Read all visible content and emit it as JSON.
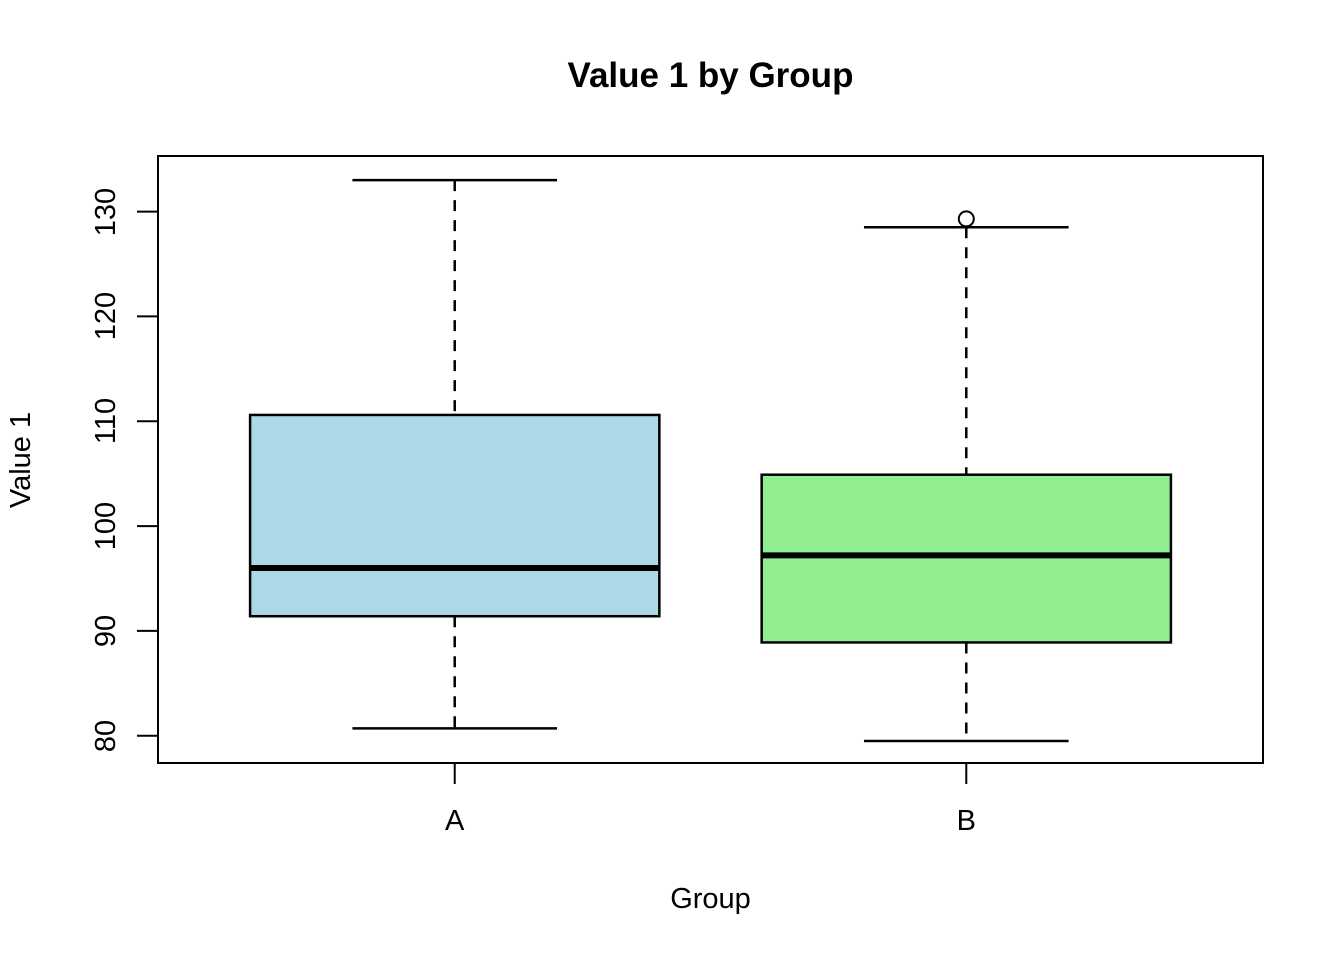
{
  "chart_data": {
    "type": "boxplot",
    "title": "Value 1 by Group",
    "xlabel": "Group",
    "ylabel": "Value 1",
    "ylim": [
      77.4,
      135.3
    ],
    "yticks": [
      80,
      90,
      100,
      110,
      120,
      130
    ],
    "grid": false,
    "legend": null,
    "categories": [
      "A",
      "B"
    ],
    "frame_color": "#000000",
    "background_color": "#FFFFFF",
    "groups": [
      {
        "label": "A",
        "fill": "#ADD8E6",
        "whisker_low": 80.7,
        "q1": 91.4,
        "median": 96.0,
        "q3": 110.6,
        "whisker_high": 133.0,
        "outliers": []
      },
      {
        "label": "B",
        "fill": "#90EE90",
        "whisker_low": 79.5,
        "q1": 88.9,
        "median": 97.2,
        "q3": 104.9,
        "whisker_high": 128.5,
        "outliers": [
          129.3
        ]
      }
    ]
  }
}
